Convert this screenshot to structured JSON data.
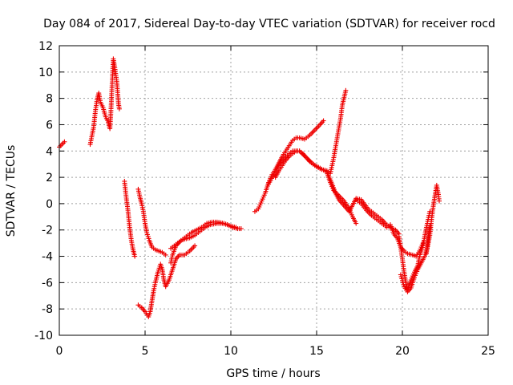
{
  "chart_data": {
    "type": "scatter",
    "title": "Day 084 of 2017, Sidereal Day-to-day VTEC variation (SDTVAR) for receiver rocd",
    "xlabel": "GPS time / hours",
    "ylabel": "SDTVAR / TECUs",
    "xlim": [
      0,
      25
    ],
    "ylim": [
      -10,
      12
    ],
    "xticks": [
      "0",
      "5",
      "10",
      "15",
      "20",
      "25"
    ],
    "yticks": [
      "-10",
      "-8",
      "-6",
      "-4",
      "-2",
      "0",
      "2",
      "4",
      "6",
      "8",
      "10",
      "12"
    ],
    "grid": true,
    "marker": "plus",
    "color": "#ee0000",
    "segments": [
      [
        [
          0.0,
          4.3
        ],
        [
          0.15,
          4.5
        ],
        [
          0.3,
          4.7
        ]
      ],
      [
        [
          1.8,
          4.5
        ],
        [
          2.0,
          5.8
        ],
        [
          2.1,
          7.0
        ],
        [
          2.2,
          7.9
        ],
        [
          2.3,
          8.4
        ],
        [
          2.4,
          7.7
        ],
        [
          2.55,
          7.3
        ],
        [
          2.7,
          6.6
        ],
        [
          2.85,
          6.2
        ],
        [
          2.95,
          5.7
        ],
        [
          3.0,
          6.8
        ],
        [
          3.05,
          8.2
        ],
        [
          3.1,
          9.7
        ],
        [
          3.15,
          11.0
        ],
        [
          3.25,
          10.2
        ],
        [
          3.35,
          9.3
        ],
        [
          3.45,
          7.6
        ],
        [
          3.5,
          7.2
        ]
      ],
      [
        [
          3.8,
          1.7
        ],
        [
          3.9,
          0.5
        ],
        [
          4.0,
          -0.5
        ],
        [
          4.1,
          -1.8
        ],
        [
          4.2,
          -2.8
        ],
        [
          4.3,
          -3.5
        ],
        [
          4.4,
          -4.0
        ]
      ],
      [
        [
          4.6,
          1.1
        ],
        [
          4.7,
          0.5
        ],
        [
          4.8,
          0.0
        ],
        [
          4.9,
          -0.6
        ],
        [
          5.0,
          -1.5
        ],
        [
          5.1,
          -2.2
        ],
        [
          5.25,
          -2.8
        ],
        [
          5.4,
          -3.3
        ],
        [
          5.6,
          -3.5
        ],
        [
          5.8,
          -3.6
        ],
        [
          6.0,
          -3.7
        ],
        [
          6.2,
          -3.9
        ]
      ],
      [
        [
          4.6,
          -7.7
        ],
        [
          4.8,
          -7.9
        ],
        [
          5.0,
          -8.2
        ],
        [
          5.2,
          -8.6
        ],
        [
          5.3,
          -8.2
        ],
        [
          5.4,
          -7.4
        ],
        [
          5.5,
          -6.6
        ],
        [
          5.6,
          -6.0
        ],
        [
          5.75,
          -5.2
        ],
        [
          5.9,
          -4.6
        ],
        [
          6.0,
          -5.0
        ],
        [
          6.1,
          -5.8
        ],
        [
          6.2,
          -6.3
        ],
        [
          6.4,
          -5.8
        ],
        [
          6.6,
          -5.0
        ],
        [
          6.8,
          -4.2
        ],
        [
          7.0,
          -3.9
        ],
        [
          7.3,
          -3.9
        ],
        [
          7.6,
          -3.6
        ],
        [
          7.9,
          -3.2
        ]
      ],
      [
        [
          6.5,
          -3.4
        ],
        [
          6.7,
          -3.2
        ],
        [
          6.9,
          -3.0
        ],
        [
          7.1,
          -2.8
        ],
        [
          7.3,
          -2.7
        ],
        [
          7.6,
          -2.6
        ],
        [
          7.9,
          -2.4
        ],
        [
          8.2,
          -2.1
        ],
        [
          8.5,
          -1.8
        ],
        [
          8.8,
          -1.6
        ],
        [
          9.2,
          -1.5
        ],
        [
          9.5,
          -1.5
        ],
        [
          9.8,
          -1.6
        ],
        [
          10.1,
          -1.8
        ],
        [
          10.4,
          -1.9
        ],
        [
          10.6,
          -1.9
        ]
      ],
      [
        [
          6.5,
          -4.5
        ],
        [
          6.6,
          -3.9
        ],
        [
          6.8,
          -3.2
        ],
        [
          7.1,
          -2.8
        ],
        [
          7.4,
          -2.5
        ],
        [
          7.7,
          -2.2
        ],
        [
          8.0,
          -2.0
        ],
        [
          8.3,
          -1.8
        ],
        [
          8.6,
          -1.5
        ],
        [
          8.9,
          -1.4
        ],
        [
          9.2,
          -1.4
        ],
        [
          9.6,
          -1.5
        ],
        [
          10.0,
          -1.7
        ],
        [
          10.3,
          -1.8
        ]
      ],
      [
        [
          11.4,
          -0.6
        ],
        [
          11.6,
          -0.4
        ],
        [
          11.8,
          0.2
        ],
        [
          12.0,
          0.8
        ],
        [
          12.2,
          1.6
        ],
        [
          12.4,
          2.2
        ],
        [
          12.6,
          2.6
        ],
        [
          12.8,
          3.1
        ],
        [
          13.0,
          3.6
        ],
        [
          13.2,
          4.0
        ],
        [
          13.4,
          4.4
        ],
        [
          13.6,
          4.8
        ],
        [
          13.8,
          5.0
        ],
        [
          14.0,
          5.0
        ],
        [
          14.3,
          4.9
        ],
        [
          14.6,
          5.2
        ],
        [
          14.9,
          5.6
        ],
        [
          15.2,
          6.0
        ],
        [
          15.4,
          6.3
        ]
      ],
      [
        [
          12.6,
          2.0
        ],
        [
          12.8,
          2.5
        ],
        [
          13.0,
          2.9
        ],
        [
          13.2,
          3.3
        ],
        [
          13.4,
          3.6
        ],
        [
          13.6,
          3.8
        ],
        [
          13.8,
          4.0
        ],
        [
          14.0,
          4.0
        ],
        [
          14.2,
          3.8
        ],
        [
          14.4,
          3.5
        ],
        [
          14.6,
          3.2
        ],
        [
          14.8,
          3.0
        ],
        [
          15.0,
          2.8
        ],
        [
          15.3,
          2.6
        ],
        [
          15.6,
          2.5
        ],
        [
          15.8,
          2.3
        ],
        [
          16.0,
          3.5
        ],
        [
          16.2,
          5.0
        ],
        [
          16.4,
          6.5
        ],
        [
          16.5,
          7.5
        ],
        [
          16.7,
          8.6
        ]
      ],
      [
        [
          12.2,
          1.5
        ],
        [
          12.5,
          2.2
        ],
        [
          12.8,
          2.9
        ],
        [
          13.2,
          3.6
        ],
        [
          13.6,
          4.0
        ],
        [
          14.0,
          4.0
        ],
        [
          14.4,
          3.5
        ],
        [
          14.8,
          3.0
        ],
        [
          15.2,
          2.7
        ],
        [
          15.6,
          2.4
        ],
        [
          15.9,
          1.5
        ],
        [
          16.1,
          0.8
        ],
        [
          16.3,
          0.3
        ],
        [
          16.5,
          0.0
        ],
        [
          16.7,
          -0.3
        ],
        [
          16.9,
          -0.6
        ],
        [
          17.1,
          -0.1
        ],
        [
          17.3,
          0.4
        ],
        [
          17.6,
          0.3
        ],
        [
          18.0,
          -0.4
        ],
        [
          18.4,
          -0.8
        ],
        [
          18.8,
          -1.2
        ],
        [
          19.0,
          -1.5
        ],
        [
          19.3,
          -1.8
        ],
        [
          19.6,
          -2.0
        ],
        [
          19.8,
          -2.3
        ]
      ],
      [
        [
          15.6,
          2.4
        ],
        [
          15.8,
          1.6
        ],
        [
          16.0,
          1.0
        ],
        [
          16.3,
          0.6
        ],
        [
          16.6,
          0.2
        ],
        [
          16.9,
          -0.4
        ],
        [
          17.1,
          -1.0
        ],
        [
          17.3,
          -1.5
        ]
      ],
      [
        [
          17.3,
          0.3
        ],
        [
          17.6,
          0.0
        ],
        [
          17.9,
          -0.5
        ],
        [
          18.2,
          -0.9
        ],
        [
          18.5,
          -1.2
        ],
        [
          18.8,
          -1.5
        ],
        [
          19.1,
          -1.8
        ],
        [
          19.3,
          -1.6
        ],
        [
          19.5,
          -2.3
        ],
        [
          19.7,
          -2.6
        ],
        [
          19.9,
          -3.3
        ],
        [
          20.1,
          -3.6
        ],
        [
          20.3,
          -3.8
        ],
        [
          20.6,
          -3.9
        ],
        [
          20.8,
          -4.0
        ],
        [
          21.0,
          -3.6
        ],
        [
          21.2,
          -3.0
        ]
      ],
      [
        [
          19.8,
          -2.5
        ],
        [
          19.9,
          -3.3
        ],
        [
          20.0,
          -4.2
        ],
        [
          20.1,
          -5.2
        ],
        [
          20.2,
          -6.0
        ],
        [
          20.3,
          -6.5
        ],
        [
          20.5,
          -5.8
        ],
        [
          20.7,
          -5.2
        ],
        [
          20.9,
          -4.7
        ],
        [
          21.0,
          -4.0
        ],
        [
          21.2,
          -3.2
        ],
        [
          21.3,
          -2.5
        ],
        [
          21.4,
          -1.8
        ],
        [
          21.5,
          -1.2
        ],
        [
          21.6,
          -0.6
        ]
      ],
      [
        [
          19.9,
          -5.4
        ],
        [
          20.1,
          -6.3
        ],
        [
          20.3,
          -6.7
        ],
        [
          20.5,
          -6.4
        ],
        [
          20.7,
          -5.6
        ],
        [
          20.9,
          -5.0
        ],
        [
          21.1,
          -4.5
        ],
        [
          21.3,
          -4.0
        ],
        [
          21.45,
          -3.4
        ],
        [
          21.6,
          -2.4
        ],
        [
          21.7,
          -1.2
        ],
        [
          21.8,
          -0.2
        ],
        [
          21.9,
          0.6
        ],
        [
          22.0,
          1.4
        ],
        [
          22.1,
          0.7
        ],
        [
          22.15,
          0.2
        ]
      ],
      [
        [
          21.4,
          -3.8
        ],
        [
          21.5,
          -2.6
        ],
        [
          21.6,
          -1.7
        ]
      ]
    ]
  }
}
